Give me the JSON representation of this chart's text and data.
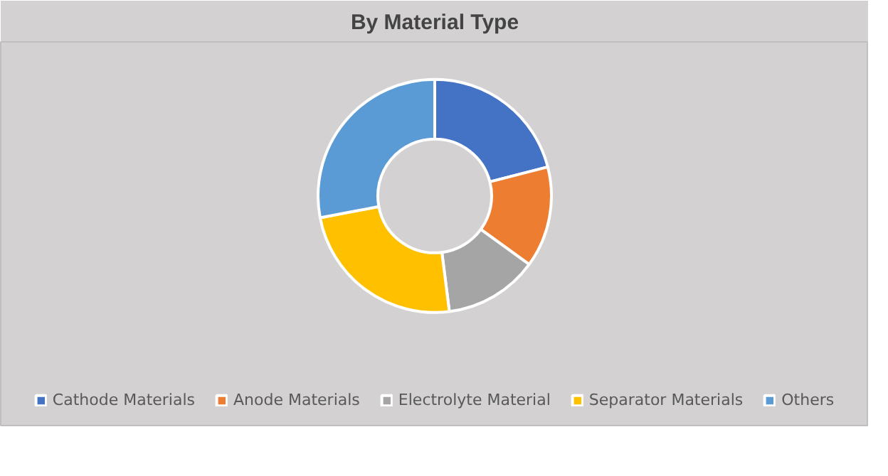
{
  "chart_data": {
    "type": "donut",
    "title": "By Material Type",
    "categories": [
      "Cathode Materials",
      "Anode Materials",
      "Electrolyte Material",
      "Separator Materials",
      "Others"
    ],
    "values": [
      21,
      14,
      13,
      24,
      28
    ],
    "colors": [
      "#4472c4",
      "#ed7d31",
      "#a5a5a5",
      "#ffc000",
      "#5b9bd5"
    ],
    "legend": "bottom"
  }
}
